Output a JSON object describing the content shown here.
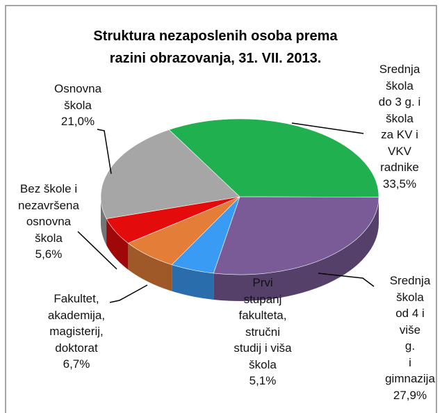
{
  "chart_data": {
    "type": "pie3d",
    "title": "Struktura nezaposlenih osoba prema\nrazini obrazovanja,  31. VII. 2013.",
    "categories": [
      "Srednja\nškola\ndo 3 g. i\nškola\nza KV i VKV\nradnike",
      "Srednja\nškola\nod 4 i više\ng.\ni gimnazija",
      "Prvi\nstupanj\nfakulteta,\nstručni\nstudij i viša\nškola",
      "Fakultet,\nakademija,\nmagisterij,\ndoktorat",
      "Bez škole i\nnezavršena\nosnovna\nškola",
      "Osnovna\nškola"
    ],
    "values": [
      33.5,
      27.9,
      5.1,
      6.7,
      5.6,
      21.0
    ],
    "value_labels": [
      "33,5%",
      "27,9%",
      "5,1%",
      "6,7%",
      "5,6%",
      "21,0%"
    ],
    "colors": [
      "#21b04f",
      "#7a5b98",
      "#3a9bf5",
      "#e37d38",
      "#e30b0b",
      "#a6a6a6"
    ]
  }
}
